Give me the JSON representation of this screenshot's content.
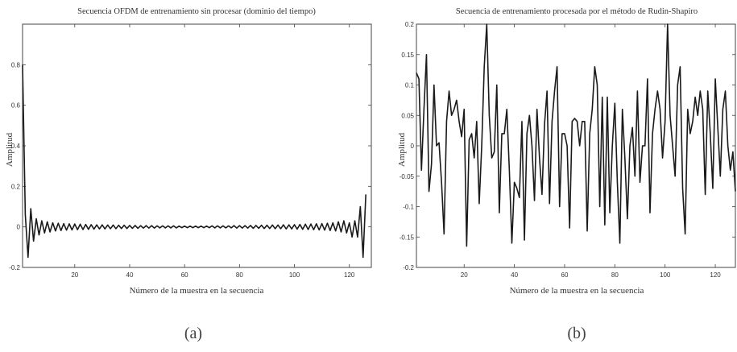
{
  "chart_data": [
    {
      "type": "line",
      "panel_label": "(a)",
      "title": "Secuencia OFDM de entrenamiento sin procesar (dominio del tiempo)",
      "xlabel": "Número de la muestra en la secuencia",
      "ylabel": "Amplitud",
      "xlim": [
        1,
        128
      ],
      "ylim": [
        -0.2,
        1.0
      ],
      "xticks": [
        20,
        40,
        60,
        80,
        100,
        120
      ],
      "xticklabels": [
        "20",
        "40",
        "60",
        "80",
        "100",
        "120"
      ],
      "yticks": [
        -0.2,
        0,
        0.2,
        0.4,
        0.6,
        0.8
      ],
      "yticklabels": [
        "-0.2",
        "0",
        "0.2",
        "0.4",
        "0.6",
        "0.8"
      ],
      "grid": false,
      "series": [
        {
          "values": [
            0.8,
            0.06,
            -0.15,
            0.09,
            -0.07,
            0.04,
            -0.04,
            0.03,
            -0.03,
            0.025,
            -0.025,
            0.02,
            -0.02,
            0.018,
            -0.018,
            0.016,
            -0.016,
            0.015,
            -0.015,
            0.014,
            -0.014,
            0.013,
            -0.013,
            0.012,
            -0.012,
            0.011,
            -0.011,
            0.01,
            -0.01,
            0.01,
            -0.01,
            0.009,
            -0.009,
            0.009,
            -0.009,
            0.008,
            -0.008,
            0.008,
            -0.008,
            0.007,
            -0.007,
            0.007,
            -0.007,
            0.006,
            -0.006,
            0.006,
            -0.006,
            0.006,
            -0.006,
            0.005,
            -0.005,
            0.005,
            -0.005,
            0.005,
            -0.005,
            0.005,
            -0.005,
            0.004,
            -0.004,
            0.004,
            -0.004,
            0.004,
            -0.004,
            0.004,
            -0.004,
            0.004,
            -0.004,
            0.004,
            -0.004,
            0.005,
            -0.005,
            0.005,
            -0.005,
            0.005,
            -0.005,
            0.005,
            -0.005,
            0.006,
            -0.006,
            0.006,
            -0.006,
            0.006,
            -0.006,
            0.007,
            -0.007,
            0.007,
            -0.007,
            0.008,
            -0.008,
            0.008,
            -0.008,
            0.009,
            -0.009,
            0.009,
            -0.009,
            0.01,
            -0.01,
            0.01,
            -0.01,
            0.011,
            -0.011,
            0.012,
            -0.012,
            0.013,
            -0.013,
            0.014,
            -0.014,
            0.015,
            -0.015,
            0.016,
            -0.016,
            0.018,
            -0.018,
            0.02,
            -0.02,
            0.025,
            -0.025,
            0.03,
            -0.03,
            0.02,
            -0.05,
            0.03,
            -0.05,
            0.1,
            -0.15,
            0.16
          ]
        }
      ]
    },
    {
      "type": "line",
      "panel_label": "(b)",
      "title": "Secuencia de entrenamiento procesada por el método de Rudin-Shapiro",
      "xlabel": "Número de la muestra en la secuencia",
      "ylabel": "Amplitud",
      "xlim": [
        1,
        128
      ],
      "ylim": [
        -0.2,
        0.2
      ],
      "xticks": [
        20,
        40,
        60,
        80,
        100,
        120
      ],
      "xticklabels": [
        "20",
        "40",
        "60",
        "80",
        "100",
        "120"
      ],
      "yticks": [
        -0.2,
        -0.15,
        -0.1,
        -0.05,
        0,
        0.05,
        0.1,
        0.15,
        0.2
      ],
      "yticklabels": [
        "-0.2",
        "-0.15",
        "-0.1",
        "-0.05",
        "0",
        "0.05",
        "0.1",
        "0.15",
        "0.2"
      ],
      "grid": false,
      "series": [
        {
          "values": [
            0.12,
            0.11,
            -0.04,
            0.06,
            0.15,
            -0.075,
            -0.03,
            0.1,
            0.0,
            0.005,
            -0.06,
            -0.145,
            0.04,
            0.09,
            0.05,
            0.06,
            0.075,
            0.04,
            0.015,
            0.06,
            -0.165,
            0.01,
            0.02,
            -0.02,
            0.04,
            -0.095,
            0.0,
            0.13,
            0.2,
            0.05,
            -0.02,
            -0.01,
            0.1,
            -0.11,
            0.02,
            0.02,
            0.06,
            -0.04,
            -0.16,
            -0.06,
            -0.07,
            -0.085,
            0.04,
            -0.155,
            0.02,
            0.05,
            0.0,
            -0.09,
            0.06,
            -0.02,
            -0.08,
            0.035,
            0.09,
            -0.095,
            0.04,
            0.09,
            0.13,
            -0.1,
            0.02,
            0.02,
            0.0,
            -0.135,
            0.04,
            0.045,
            0.04,
            0.0,
            0.04,
            0.04,
            -0.14,
            0.02,
            0.06,
            0.13,
            0.1,
            -0.1,
            0.08,
            -0.13,
            0.08,
            -0.11,
            0.0,
            0.07,
            -0.06,
            -0.16,
            0.06,
            -0.02,
            -0.12,
            0.0,
            0.03,
            -0.05,
            0.09,
            -0.06,
            0.0,
            0.0,
            0.11,
            -0.11,
            0.02,
            0.06,
            0.09,
            0.06,
            -0.02,
            0.04,
            0.2,
            0.05,
            0.0,
            -0.05,
            0.1,
            0.13,
            -0.07,
            -0.145,
            0.06,
            0.02,
            0.04,
            0.08,
            0.05,
            0.09,
            0.06,
            -0.08,
            0.09,
            0.02,
            -0.07,
            0.11,
            0.03,
            -0.05,
            0.06,
            0.09,
            0.0,
            -0.04,
            -0.01,
            -0.075
          ]
        }
      ]
    }
  ]
}
